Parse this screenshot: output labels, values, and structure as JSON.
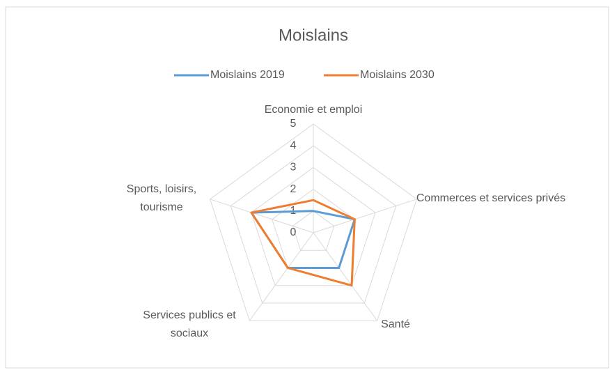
{
  "chart_data": {
    "type": "radar",
    "title": "Moislains",
    "categories": [
      "Economie et emploi",
      "Commerces et services privés",
      "Santé",
      "Services publics et sociaux",
      "Sports, loisirs, tourisme"
    ],
    "series": [
      {
        "name": "Moislains 2019",
        "color": "#5b9bd5",
        "values": [
          1,
          2,
          2,
          2,
          3
        ]
      },
      {
        "name": "Moislains 2030",
        "color": "#ed7d31",
        "values": [
          1.5,
          2,
          3,
          2,
          3
        ]
      }
    ],
    "ylim": [
      0,
      5
    ],
    "yticks": [
      0,
      1,
      2,
      3,
      4,
      5
    ],
    "grid": true,
    "legend": "top"
  }
}
